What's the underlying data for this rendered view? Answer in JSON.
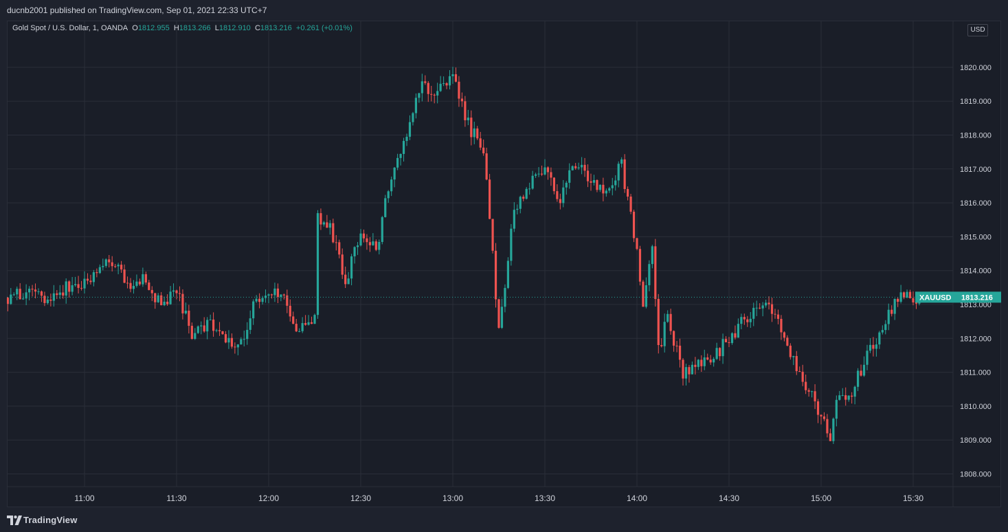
{
  "header": {
    "published": "ducnb2001 published on TradingView.com, Sep 01, 2021 22:33 UTC+7"
  },
  "legend": {
    "title": "Gold Spot / U.S. Dollar, 1, OANDA",
    "o_label": "O",
    "o_value": "1812.955",
    "h_label": "H",
    "h_value": "1813.266",
    "l_label": "L",
    "l_value": "1812.910",
    "c_label": "C",
    "c_value": "1813.216",
    "change": "+0.261 (+0.01%)"
  },
  "currency_badge": "USD",
  "price_tag": {
    "symbol": "XAUUSD",
    "value": "1813.216"
  },
  "footer": {
    "brand": "TradingView"
  },
  "colors": {
    "up": "#26a69a",
    "down": "#ef5350",
    "background": "#1a1e28",
    "grid": "#2a2e39",
    "text": "#d1d4dc"
  },
  "chart_data": {
    "type": "candlestick",
    "symbol": "Gold Spot / U.S. Dollar",
    "interval": "1",
    "source": "OANDA",
    "x_ticks": [
      "11:00",
      "11:30",
      "12:00",
      "12:30",
      "13:00",
      "13:30",
      "14:00",
      "14:30",
      "15:00",
      "15:30"
    ],
    "y_ticks": [
      "1808.000",
      "1809.000",
      "1810.000",
      "1811.000",
      "1812.000",
      "1813.000",
      "1814.000",
      "1815.000",
      "1816.000",
      "1817.000",
      "1818.000",
      "1819.000",
      "1820.000"
    ],
    "ylim": [
      1807.7,
      1821.4
    ],
    "last_price": 1813.216,
    "grid": true,
    "close_waypoints": [
      [
        "10:35",
        1813.2
      ],
      [
        "10:40",
        1813.3
      ],
      [
        "10:45",
        1813.2
      ],
      [
        "10:50",
        1813.3
      ],
      [
        "10:55",
        1813.5
      ],
      [
        "11:00",
        1813.6
      ],
      [
        "11:05",
        1814.2
      ],
      [
        "11:10",
        1814.1
      ],
      [
        "11:15",
        1813.6
      ],
      [
        "11:20",
        1813.7
      ],
      [
        "11:25",
        1813.0
      ],
      [
        "11:30",
        1813.5
      ],
      [
        "11:35",
        1812.1
      ],
      [
        "11:40",
        1812.4
      ],
      [
        "11:45",
        1812.2
      ],
      [
        "11:50",
        1811.7
      ],
      [
        "11:55",
        1812.9
      ],
      [
        "12:00",
        1813.4
      ],
      [
        "12:05",
        1813.3
      ],
      [
        "12:10",
        1812.2
      ],
      [
        "12:15",
        1812.5
      ],
      [
        "12:16",
        1815.6
      ],
      [
        "12:20",
        1815.3
      ],
      [
        "12:25",
        1813.7
      ],
      [
        "12:30",
        1815.1
      ],
      [
        "12:35",
        1814.6
      ],
      [
        "12:40",
        1816.8
      ],
      [
        "12:45",
        1818.0
      ],
      [
        "12:50",
        1819.5
      ],
      [
        "12:55",
        1819.2
      ],
      [
        "13:00",
        1819.8
      ],
      [
        "13:05",
        1818.3
      ],
      [
        "13:10",
        1817.6
      ],
      [
        "13:15",
        1812.3
      ],
      [
        "13:20",
        1815.8
      ],
      [
        "13:25",
        1816.6
      ],
      [
        "13:30",
        1817.1
      ],
      [
        "13:35",
        1816.1
      ],
      [
        "13:40",
        1817.2
      ],
      [
        "13:45",
        1816.6
      ],
      [
        "13:50",
        1816.3
      ],
      [
        "13:55",
        1817.1
      ],
      [
        "14:00",
        1814.7
      ],
      [
        "14:02",
        1812.8
      ],
      [
        "14:05",
        1814.6
      ],
      [
        "14:07",
        1811.6
      ],
      [
        "14:10",
        1812.6
      ],
      [
        "14:15",
        1811.0
      ],
      [
        "14:20",
        1811.2
      ],
      [
        "14:25",
        1811.5
      ],
      [
        "14:30",
        1812.0
      ],
      [
        "14:35",
        1812.6
      ],
      [
        "14:40",
        1813.1
      ],
      [
        "14:45",
        1812.8
      ],
      [
        "14:50",
        1811.6
      ],
      [
        "14:55",
        1810.6
      ],
      [
        "15:00",
        1809.7
      ],
      [
        "15:03",
        1809.0
      ],
      [
        "15:05",
        1810.1
      ],
      [
        "15:10",
        1810.4
      ],
      [
        "15:15",
        1811.5
      ],
      [
        "15:20",
        1812.3
      ],
      [
        "15:25",
        1813.1
      ],
      [
        "15:28",
        1813.3
      ],
      [
        "15:32",
        1813.2
      ]
    ]
  }
}
